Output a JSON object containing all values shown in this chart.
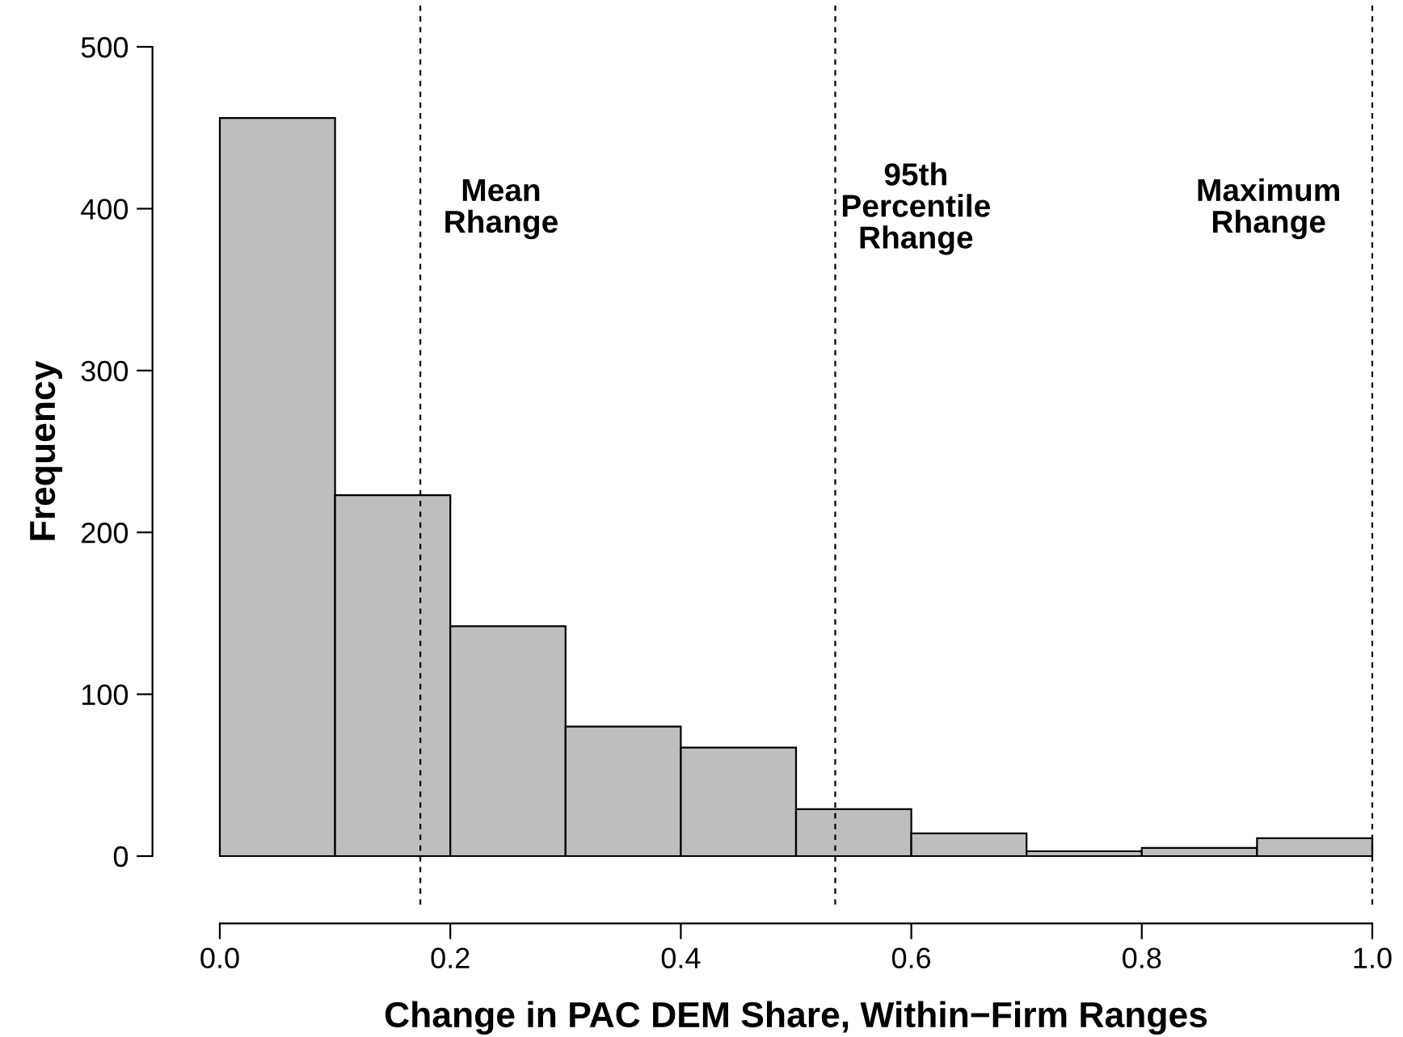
{
  "chart_data": {
    "type": "histogram",
    "xlabel": "Change in PAC DEM Share, Within−Firm Ranges",
    "ylabel": "Frequency",
    "bins": [
      0,
      0.1,
      0.2,
      0.3,
      0.4,
      0.5,
      0.6,
      0.7,
      0.8,
      0.9,
      1.0
    ],
    "values": [
      456,
      223,
      142,
      80,
      67,
      29,
      14,
      3,
      5,
      11
    ],
    "color": "#bebebe",
    "xlim": [
      0,
      1
    ],
    "xticks": [
      {
        "value": 0,
        "label": "0.0"
      },
      {
        "value": 0.2,
        "label": "0.2"
      },
      {
        "value": 0.4,
        "label": "0.4"
      },
      {
        "value": 0.6,
        "label": "0.6"
      },
      {
        "value": 0.8,
        "label": "0.8"
      },
      {
        "value": 1,
        "label": "1.0"
      }
    ],
    "ylim": [
      0,
      500
    ],
    "yticks": [
      0,
      100,
      200,
      300,
      400,
      500
    ],
    "ref_lines": [
      {
        "axis": "x",
        "value": 0.174,
        "label": "Mean\nRhange",
        "line_style": "dashed"
      },
      {
        "axis": "x",
        "value": 0.534,
        "label": "95th\nPercentile\nRhange",
        "line_style": "dashed"
      },
      {
        "axis": "x",
        "value": 1.0,
        "label": "Maximum\nRhange",
        "line_style": "dashed"
      }
    ],
    "grid": false,
    "legend": false
  }
}
